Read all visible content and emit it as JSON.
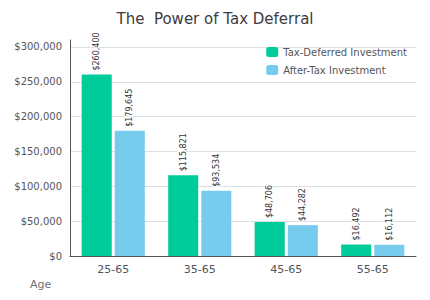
{
  "chart_data": {
    "type": "bar",
    "title": "The  Power of Tax Deferral",
    "xlabel": "Age",
    "categories": [
      "25-65",
      "35-65",
      "45-65",
      "55-65"
    ],
    "series": [
      {
        "name": "Tax-Deferred Investment",
        "color": "#00CC99",
        "values": [
          260400,
          115821,
          48706,
          16492
        ],
        "value_labels": [
          "$260,400",
          "$115,821",
          "$48,706",
          "$16,492"
        ]
      },
      {
        "name": "After-Tax Investment",
        "color": "#77CCEE",
        "values": [
          179645,
          93534,
          44282,
          16112
        ],
        "value_labels": [
          "$179,645",
          "$93,534",
          "$44,282",
          "$16,112"
        ]
      }
    ],
    "ylim": [
      0,
      310000
    ],
    "yticks": [
      {
        "value": 0,
        "label": "$0"
      },
      {
        "value": 50000,
        "label": "$50,000"
      },
      {
        "value": 100000,
        "label": "$100,000"
      },
      {
        "value": 150000,
        "label": "$150,000"
      },
      {
        "value": 200000,
        "label": "$200,000"
      },
      {
        "value": 250000,
        "label": "$250,000"
      },
      {
        "value": 300000,
        "label": "$300,000"
      }
    ],
    "grid": true,
    "legend": "upper right",
    "data_labels": true
  }
}
